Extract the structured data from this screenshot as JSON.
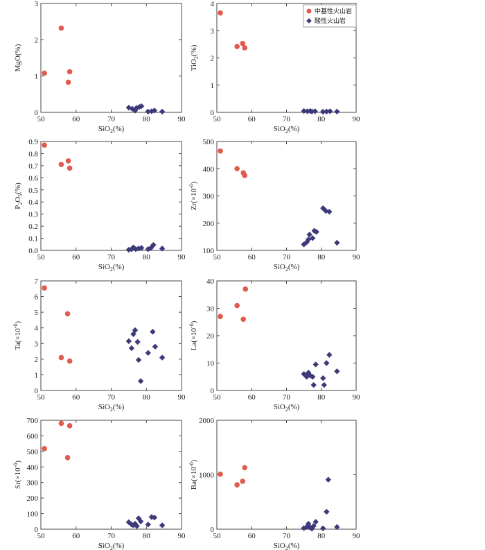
{
  "colors": {
    "intermediate": "#e05a4e",
    "acidic": "#3d3a7a"
  },
  "legend": {
    "intermediate_label": "中基性火山岩",
    "acidic_label": "酸性火山岩"
  },
  "chart_data": [
    {
      "id": "mgo",
      "type": "scatter",
      "xlabel": "SiO2(%)",
      "ylabel": "MgO(%)",
      "xlim": [
        50,
        90
      ],
      "ylim": [
        0,
        3
      ],
      "xticks": [
        50,
        60,
        70,
        80,
        90
      ],
      "yticks": [
        0,
        1,
        2,
        3
      ],
      "xtick_labels": [
        "50",
        "60",
        "70",
        "80",
        "90"
      ],
      "ytick_labels": [
        "0",
        "1",
        "2",
        "3"
      ],
      "series": [
        {
          "name": "中基性火山岩",
          "marker": "circle",
          "x": [
            51.0,
            55.8,
            57.8,
            58.2
          ],
          "y": [
            1.08,
            2.32,
            0.83,
            1.12
          ]
        },
        {
          "name": "酸性火山岩",
          "marker": "diamond",
          "x": [
            75.0,
            76.0,
            76.8,
            77.2,
            78.0,
            78.6,
            80.5,
            81.5,
            82.3,
            84.5
          ],
          "y": [
            0.13,
            0.1,
            0.05,
            0.12,
            0.15,
            0.17,
            0.02,
            0.03,
            0.05,
            0.02
          ]
        }
      ]
    },
    {
      "id": "tio2",
      "type": "scatter",
      "xlabel": "SiO2(%)",
      "ylabel": "TiO2(%)",
      "xlim": [
        50,
        90
      ],
      "ylim": [
        0,
        4
      ],
      "xticks": [
        50,
        60,
        70,
        80,
        90
      ],
      "yticks": [
        0,
        1,
        2,
        3,
        4
      ],
      "xtick_labels": [
        "50",
        "60",
        "70",
        "80",
        "90"
      ],
      "ytick_labels": [
        "0",
        "1",
        "2",
        "3",
        "4"
      ],
      "series": [
        {
          "name": "中基性火山岩",
          "marker": "circle",
          "x": [
            51.0,
            55.8,
            57.4,
            58.0
          ],
          "y": [
            3.65,
            2.42,
            2.53,
            2.37
          ]
        },
        {
          "name": "酸性火山岩",
          "marker": "diamond",
          "x": [
            75.0,
            76.0,
            76.8,
            77.3,
            78.2,
            80.5,
            81.5,
            82.5,
            84.5
          ],
          "y": [
            0.05,
            0.04,
            0.05,
            0.03,
            0.04,
            0.02,
            0.03,
            0.04,
            0.03
          ]
        }
      ]
    },
    {
      "id": "p2o5",
      "type": "scatter",
      "xlabel": "SiO2(%)",
      "ylabel": "P2O5(%)",
      "xlim": [
        50,
        90
      ],
      "ylim": [
        0,
        0.9
      ],
      "xticks": [
        50,
        60,
        70,
        80,
        90
      ],
      "yticks": [
        0,
        0.1,
        0.2,
        0.3,
        0.4,
        0.5,
        0.6,
        0.7,
        0.8,
        0.9
      ],
      "xtick_labels": [
        "50",
        "60",
        "70",
        "80",
        "90"
      ],
      "ytick_labels": [
        "0.0",
        "0.1",
        "0.2",
        "0.3",
        "0.4",
        "0.5",
        "0.6",
        "0.7",
        "0.8",
        "0.9"
      ],
      "series": [
        {
          "name": "中基性火山岩",
          "marker": "circle",
          "x": [
            51.0,
            55.8,
            57.8,
            58.2
          ],
          "y": [
            0.87,
            0.71,
            0.74,
            0.68
          ]
        },
        {
          "name": "酸性火山岩",
          "marker": "diamond",
          "x": [
            75.0,
            75.8,
            76.3,
            77.0,
            77.8,
            78.6,
            80.5,
            81.3,
            82.0,
            84.5
          ],
          "y": [
            0.005,
            0.01,
            0.025,
            0.01,
            0.015,
            0.02,
            0.01,
            0.02,
            0.045,
            0.015
          ]
        }
      ]
    },
    {
      "id": "zr",
      "type": "scatter",
      "xlabel": "SiO2(%)",
      "ylabel": "Zr(×10-6)",
      "xlim": [
        50,
        90
      ],
      "ylim": [
        100,
        500
      ],
      "xticks": [
        50,
        60,
        70,
        80,
        90
      ],
      "yticks": [
        100,
        200,
        300,
        400,
        500
      ],
      "xtick_labels": [
        "50",
        "60",
        "70",
        "80",
        "90"
      ],
      "ytick_labels": [
        "100",
        "200",
        "300",
        "400",
        "500"
      ],
      "series": [
        {
          "name": "中基性火山岩",
          "marker": "circle",
          "x": [
            51.0,
            55.8,
            57.6,
            58.0
          ],
          "y": [
            465,
            400,
            385,
            375
          ]
        },
        {
          "name": "酸性火山岩",
          "marker": "diamond",
          "x": [
            75.0,
            75.8,
            76.3,
            76.6,
            77.5,
            78.0,
            78.6,
            80.5,
            81.3,
            82.3,
            84.5
          ],
          "y": [
            122,
            130,
            140,
            158,
            145,
            172,
            168,
            255,
            245,
            242,
            128
          ]
        }
      ]
    },
    {
      "id": "ta",
      "type": "scatter",
      "xlabel": "SiO2(%)",
      "ylabel": "Ta(×10-6)",
      "xlim": [
        50,
        90
      ],
      "ylim": [
        0,
        7
      ],
      "xticks": [
        50,
        60,
        70,
        80,
        90
      ],
      "yticks": [
        0,
        1,
        2,
        3,
        4,
        5,
        6,
        7
      ],
      "xtick_labels": [
        "50",
        "60",
        "70",
        "80",
        "90"
      ],
      "ytick_labels": [
        "0",
        "1",
        "2",
        "3",
        "4",
        "5",
        "6",
        "7"
      ],
      "series": [
        {
          "name": "中基性火山岩",
          "marker": "circle",
          "x": [
            51.0,
            55.8,
            57.6,
            58.2
          ],
          "y": [
            6.55,
            2.1,
            4.9,
            1.88
          ]
        },
        {
          "name": "酸性火山岩",
          "marker": "diamond",
          "x": [
            75.0,
            75.8,
            76.3,
            76.8,
            77.5,
            77.8,
            78.4,
            80.5,
            81.8,
            82.5,
            84.5
          ],
          "y": [
            3.15,
            2.7,
            3.6,
            3.85,
            3.1,
            1.95,
            0.6,
            2.4,
            3.75,
            2.8,
            2.1
          ]
        }
      ]
    },
    {
      "id": "la",
      "type": "scatter",
      "xlabel": "SiO2(%)",
      "ylabel": "La(×10-6)",
      "xlim": [
        50,
        90
      ],
      "ylim": [
        0,
        40
      ],
      "xticks": [
        50,
        60,
        70,
        80,
        90
      ],
      "yticks": [
        0,
        10,
        20,
        30,
        40
      ],
      "xtick_labels": [
        "50",
        "60",
        "70",
        "80",
        "90"
      ],
      "ytick_labels": [
        "0",
        "10",
        "20",
        "30",
        "40"
      ],
      "series": [
        {
          "name": "中基性火山岩",
          "marker": "circle",
          "x": [
            51.0,
            55.8,
            57.6,
            58.2
          ],
          "y": [
            27,
            31,
            26,
            37
          ]
        },
        {
          "name": "酸性火山岩",
          "marker": "diamond",
          "x": [
            75.0,
            75.8,
            76.3,
            76.8,
            77.5,
            77.8,
            78.4,
            80.5,
            80.8,
            81.5,
            82.3,
            84.5
          ],
          "y": [
            6,
            5,
            6.5,
            5.5,
            5,
            2,
            9.5,
            4.5,
            2,
            10,
            13,
            7
          ]
        }
      ]
    },
    {
      "id": "sr",
      "type": "scatter",
      "xlabel": "SiO2(%)",
      "ylabel": "Sr(×10-6)",
      "xlim": [
        50,
        90
      ],
      "ylim": [
        0,
        700
      ],
      "xticks": [
        50,
        60,
        70,
        80,
        90
      ],
      "yticks": [
        0,
        100,
        200,
        300,
        400,
        500,
        600,
        700
      ],
      "xtick_labels": [
        "50",
        "60",
        "70",
        "80",
        "90"
      ],
      "ytick_labels": [
        "0",
        "100",
        "200",
        "300",
        "400",
        "500",
        "600",
        "700"
      ],
      "series": [
        {
          "name": "中基性火山岩",
          "marker": "circle",
          "x": [
            51.0,
            55.8,
            57.6,
            58.2
          ],
          "y": [
            518,
            680,
            460,
            665
          ]
        },
        {
          "name": "酸性火山岩",
          "marker": "diamond",
          "x": [
            75.0,
            75.8,
            76.3,
            76.8,
            77.3,
            77.8,
            78.4,
            80.5,
            81.5,
            82.3,
            84.5
          ],
          "y": [
            45,
            30,
            25,
            35,
            20,
            70,
            50,
            30,
            78,
            75,
            25
          ]
        }
      ]
    },
    {
      "id": "ba",
      "type": "scatter",
      "xlabel": "SiO2(%)",
      "ylabel": "Ba(×10-6)",
      "xlim": [
        50,
        90
      ],
      "ylim": [
        0,
        2000
      ],
      "xticks": [
        50,
        60,
        70,
        80,
        90
      ],
      "yticks": [
        0,
        1000,
        2000
      ],
      "xtick_labels": [
        "50",
        "60",
        "70",
        "80",
        "90"
      ],
      "ytick_labels": [
        "0",
        "1000",
        "2000"
      ],
      "series": [
        {
          "name": "中基性火山岩",
          "marker": "circle",
          "x": [
            51.0,
            55.8,
            57.4,
            58.0
          ],
          "y": [
            1010,
            815,
            880,
            1130
          ]
        },
        {
          "name": "酸性火山岩",
          "marker": "diamond",
          "x": [
            75.0,
            75.8,
            76.3,
            76.8,
            77.3,
            77.8,
            78.4,
            80.5,
            81.5,
            82.0,
            84.5
          ],
          "y": [
            20,
            40,
            100,
            30,
            10,
            60,
            135,
            15,
            320,
            910,
            40
          ]
        }
      ]
    }
  ]
}
